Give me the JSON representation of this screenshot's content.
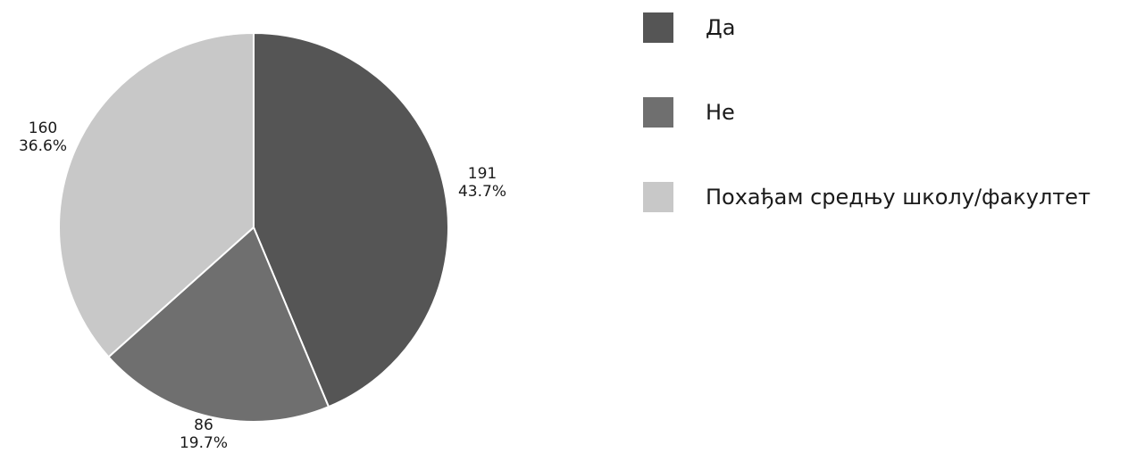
{
  "chart_data": {
    "type": "pie",
    "start_angle_deg": 0,
    "direction": "clockwise",
    "legend_position": "right",
    "slices": [
      {
        "label": "Да",
        "value": 191,
        "percent": "43.7%",
        "color": "#555555"
      },
      {
        "label": "Не",
        "value": 86,
        "percent": "19.7%",
        "color": "#6f6f6f"
      },
      {
        "label": "Похађам средњу школу/факултет",
        "value": 160,
        "percent": "36.6%",
        "color": "#c8c8c8"
      }
    ]
  }
}
